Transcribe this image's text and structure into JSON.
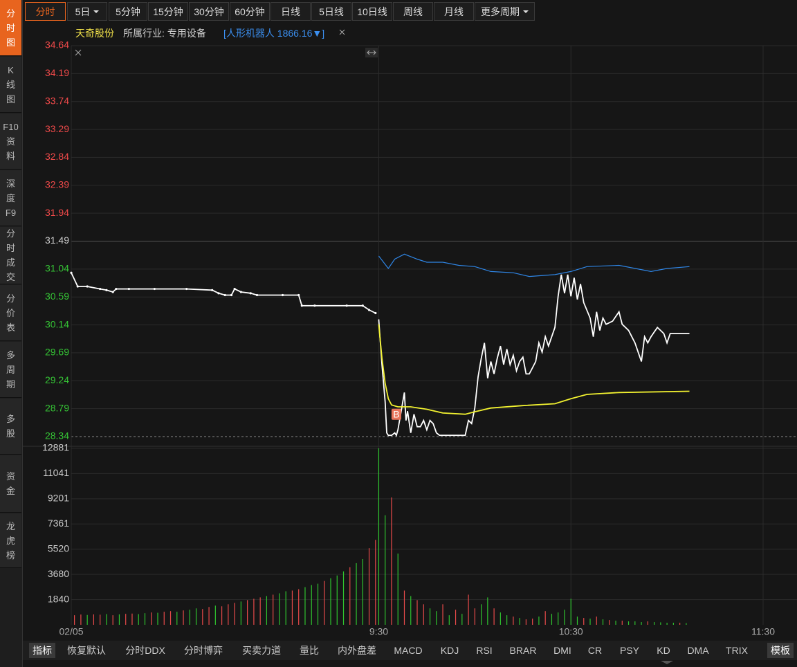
{
  "sidebar": [
    "分时图",
    "K线图",
    "F10资料",
    "深度F9",
    "分时成交",
    "分价表",
    "多周期",
    "多股",
    "资金",
    "龙虎榜"
  ],
  "toolbar": [
    "分时",
    "5日",
    "5分钟",
    "15分钟",
    "30分钟",
    "60分钟",
    "日线",
    "5日线",
    "10日线",
    "周线",
    "月线",
    "更多周期"
  ],
  "info": {
    "name": "天奇股份",
    "industry": "所属行业: 专用设备",
    "sector": "[人形机器人 1866.16▼]"
  },
  "bottom_tabs": [
    "指标",
    "恢复默认",
    "分时DDX",
    "分时博弈",
    "买卖力道",
    "量比",
    "内外盘差",
    "MACD",
    "KDJ",
    "RSI",
    "BRAR",
    "DMI",
    "CR",
    "PSY",
    "KD",
    "DMA",
    "TRIX"
  ],
  "template": "模板",
  "chart_data": {
    "type": "line",
    "xlim": [
      -96,
      120
    ],
    "xticks": [
      {
        "value": -96,
        "label": "02/05"
      },
      {
        "value": 0,
        "label": "9:30"
      },
      {
        "value": 60,
        "label": "10:30"
      },
      {
        "value": 120,
        "label": "11:30"
      }
    ],
    "ylim": [
      28.34,
      34.64
    ],
    "yticks": [
      34.64,
      34.19,
      33.74,
      33.29,
      32.84,
      32.39,
      31.94,
      31.49,
      31.04,
      30.59,
      30.14,
      29.69,
      29.24,
      28.79,
      28.34
    ],
    "ytick_colors": [
      "#f04a4a",
      "#f04a4a",
      "#f04a4a",
      "#f04a4a",
      "#f04a4a",
      "#f04a4a",
      "#f04a4a",
      "#cccccc",
      "#35c435",
      "#35c435",
      "#35c435",
      "#35c435",
      "#35c435",
      "#35c435",
      "#35c435"
    ],
    "grid": true,
    "marker": "B",
    "marker_x": 5.5,
    "marker_y": 28.7,
    "series": [
      {
        "color": "#ffffff",
        "markers": true,
        "x": [
          -96,
          -94,
          -91,
          -87,
          -85,
          -83,
          -82,
          -78,
          -70,
          -60,
          -52,
          -50,
          -48,
          -46,
          -45,
          -43,
          -40,
          -38,
          -30,
          -25,
          -24,
          -20,
          -10,
          -5,
          -3,
          -1
        ],
        "values": [
          30.98,
          30.76,
          30.76,
          30.72,
          30.7,
          30.67,
          30.72,
          30.72,
          30.72,
          30.72,
          30.7,
          30.65,
          30.62,
          30.62,
          30.72,
          30.67,
          30.65,
          30.62,
          30.62,
          30.62,
          30.45,
          30.45,
          30.45,
          30.45,
          30.38,
          30.33
        ]
      },
      {
        "color": "#ffffff",
        "markers": false,
        "x": [
          0,
          1,
          2,
          2.5,
          3,
          4,
          5,
          5.5,
          6,
          7,
          8,
          8.5,
          9,
          10,
          11,
          12,
          13,
          14,
          15,
          16,
          17,
          18,
          19,
          27,
          28,
          29,
          30,
          31,
          32,
          33,
          34,
          35,
          36,
          37,
          38,
          39,
          40,
          41,
          42,
          43,
          44,
          45,
          46,
          47,
          48,
          49,
          50,
          51,
          52,
          53,
          55,
          56,
          57,
          58,
          59,
          60,
          61,
          62,
          63,
          64,
          66,
          67,
          68,
          69,
          70,
          71,
          73,
          75,
          76,
          78,
          80,
          82,
          83,
          84,
          85,
          87,
          88,
          89,
          90,
          91,
          97
        ],
        "values": [
          30.23,
          29.5,
          28.9,
          28.4,
          28.36,
          28.36,
          28.4,
          28.36,
          28.45,
          28.75,
          29.05,
          28.6,
          28.75,
          28.4,
          28.7,
          28.5,
          28.5,
          28.6,
          28.45,
          28.6,
          28.55,
          28.4,
          28.36,
          28.36,
          28.6,
          28.55,
          28.8,
          29.3,
          29.6,
          29.85,
          29.28,
          29.55,
          29.35,
          29.6,
          29.8,
          29.5,
          29.75,
          29.5,
          29.65,
          29.4,
          29.55,
          29.62,
          29.35,
          29.35,
          29.45,
          29.55,
          29.85,
          29.7,
          29.95,
          29.8,
          30.1,
          30.6,
          30.95,
          30.65,
          30.95,
          30.6,
          30.9,
          30.55,
          30.8,
          30.5,
          30.25,
          29.95,
          30.35,
          30.05,
          30.25,
          30.15,
          30.2,
          30.35,
          30.15,
          30.05,
          29.85,
          29.55,
          29.95,
          29.85,
          29.95,
          30.1,
          30.05,
          30.0,
          29.85,
          30.0,
          30.0
        ]
      },
      {
        "color": "#f2f230",
        "markers": false,
        "x": [
          0,
          1,
          2,
          3,
          4,
          6,
          10,
          15,
          20,
          27,
          30,
          35,
          45,
          55,
          60,
          65,
          75,
          97
        ],
        "values": [
          30.15,
          29.6,
          29.2,
          28.95,
          28.85,
          28.82,
          28.82,
          28.78,
          28.72,
          28.7,
          28.74,
          28.8,
          28.84,
          28.87,
          28.95,
          29.02,
          29.05,
          29.07
        ]
      },
      {
        "color": "#2f86e6",
        "markers": false,
        "x": [
          0,
          3,
          5,
          8,
          12,
          15,
          20,
          25,
          30,
          35,
          42,
          47,
          55,
          60,
          65,
          75,
          85,
          90,
          97
        ],
        "values": [
          31.25,
          31.05,
          31.2,
          31.28,
          31.2,
          31.15,
          31.15,
          31.1,
          31.08,
          31.0,
          30.98,
          30.92,
          30.95,
          31.0,
          31.08,
          31.1,
          31.0,
          31.05,
          31.08
        ]
      }
    ],
    "volume": {
      "ylim": [
        0,
        12881
      ],
      "yticks": [
        1840,
        3680,
        5520,
        7361,
        9201,
        11041,
        12881
      ],
      "x": [
        -95,
        -93,
        -91,
        -89,
        -87,
        -85,
        -83,
        -81,
        -79,
        -77,
        -75,
        -73,
        -71,
        -69,
        -67,
        -65,
        -63,
        -61,
        -59,
        -57,
        -55,
        -53,
        -51,
        -49,
        -47,
        -45,
        -43,
        -41,
        -39,
        -37,
        -35,
        -33,
        -31,
        -29,
        -27,
        -25,
        -23,
        -21,
        -19,
        -17,
        -15,
        -13,
        -11,
        -9,
        -7,
        -5,
        -3,
        -1,
        0,
        2,
        4,
        6,
        8,
        10,
        12,
        14,
        16,
        18,
        20,
        22,
        24,
        26,
        28,
        30,
        32,
        34,
        36,
        38,
        40,
        42,
        44,
        46,
        48,
        50,
        52,
        54,
        56,
        58,
        60,
        62,
        64,
        66,
        68,
        70,
        72,
        74,
        76,
        78,
        80,
        82,
        84,
        86,
        88,
        90,
        92,
        94,
        96
      ],
      "values": [
        700,
        750,
        720,
        760,
        740,
        780,
        700,
        760,
        800,
        820,
        780,
        850,
        900,
        880,
        950,
        1000,
        950,
        1050,
        1100,
        1200,
        1150,
        1300,
        1400,
        1350,
        1500,
        1600,
        1700,
        1800,
        1900,
        2000,
        2100,
        2200,
        2300,
        2450,
        2500,
        2600,
        2750,
        2900,
        3000,
        3200,
        3400,
        3600,
        3900,
        4200,
        4500,
        4800,
        5600,
        6200,
        12881,
        8000,
        9300,
        5200,
        2500,
        2100,
        1800,
        1500,
        1200,
        1000,
        1500,
        700,
        1100,
        800,
        2200,
        1200,
        1500,
        2000,
        1200,
        900,
        700,
        600,
        500,
        400,
        450,
        600,
        1000,
        800,
        900,
        1100,
        1900,
        600,
        500,
        450,
        600,
        400,
        350,
        300,
        300,
        250,
        250,
        200,
        250,
        200,
        180,
        150,
        150,
        150,
        120
      ],
      "colors": [
        "#e84a4a",
        "#e84a4a",
        "#2fc42f",
        "#e84a4a",
        "#e84a4a",
        "#2fc42f",
        "#e84a4a",
        "#2fc42f",
        "#e84a4a",
        "#e84a4a",
        "#2fc42f",
        "#2fc42f",
        "#e84a4a",
        "#2fc42f",
        "#e84a4a",
        "#e84a4a",
        "#2fc42f",
        "#e84a4a",
        "#2fc42f",
        "#2fc42f",
        "#e84a4a",
        "#e84a4a",
        "#2fc42f",
        "#e84a4a",
        "#e84a4a",
        "#e84a4a",
        "#2fc42f",
        "#e84a4a",
        "#e84a4a",
        "#e84a4a",
        "#2fc42f",
        "#e84a4a",
        "#2fc42f",
        "#2fc42f",
        "#e84a4a",
        "#e84a4a",
        "#2fc42f",
        "#2fc42f",
        "#2fc42f",
        "#e84a4a",
        "#2fc42f",
        "#2fc42f",
        "#2fc42f",
        "#e84a4a",
        "#2fc42f",
        "#2fc42f",
        "#e84a4a",
        "#e84a4a",
        "#2fc42f",
        "#2fc42f",
        "#e84a4a",
        "#2fc42f",
        "#e84a4a",
        "#2fc42f",
        "#e84a4a",
        "#e84a4a",
        "#2fc42f",
        "#2fc42f",
        "#e84a4a",
        "#2fc42f",
        "#e84a4a",
        "#2fc42f",
        "#e84a4a",
        "#e84a4a",
        "#2fc42f",
        "#2fc42f",
        "#e84a4a",
        "#2fc42f",
        "#2fc42f",
        "#e84a4a",
        "#2fc42f",
        "#e84a4a",
        "#e84a4a",
        "#2fc42f",
        "#e84a4a",
        "#2fc42f",
        "#2fc42f",
        "#2fc42f",
        "#2fc42f",
        "#2fc42f",
        "#e84a4a",
        "#2fc42f",
        "#e84a4a",
        "#2fc42f",
        "#e84a4a",
        "#2fc42f",
        "#e84a4a",
        "#2fc42f",
        "#2fc42f",
        "#2fc42f",
        "#e84a4a",
        "#2fc42f",
        "#2fc42f",
        "#2fc42f",
        "#2fc42f",
        "#e84a4a",
        "#2fc42f"
      ]
    }
  }
}
